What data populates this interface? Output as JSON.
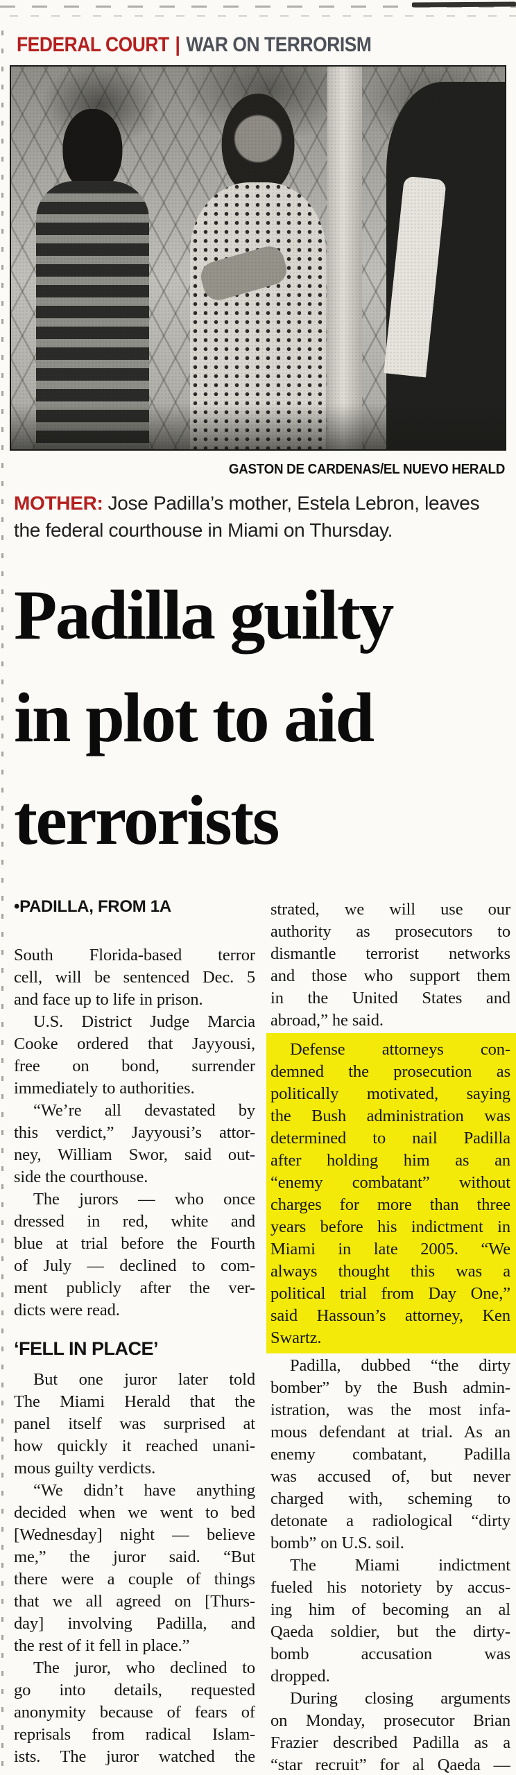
{
  "colors": {
    "kicker_red": "#b5201f",
    "kicker_gray": "#4d5158",
    "highlight_yellow": "#f3ea09",
    "paper": "#fbfaf6",
    "ink": "#161616"
  },
  "kicker": {
    "left": "FEDERAL COURT",
    "divider": "|",
    "right": "WAR ON TERRORISM"
  },
  "photo": {
    "credit": "GASTON DE CARDENAS/EL NUEVO HERALD",
    "description": "black-and-white news photo: woman leaving courthouse past chain-link fence, man in striped shirt behind her, officer at right"
  },
  "caption": {
    "lead": "MOTHER:",
    "text": "Jose Padilla’s mother, Estela Lebron, leaves the federal courthouse in Miami on Thursday."
  },
  "headline": {
    "lines": [
      "Padilla guilty",
      "in plot to aid",
      "terrorists"
    ]
  },
  "columns": {
    "left": [
      {
        "type": "tag",
        "text": "•PADILLA, FROM 1A"
      },
      {
        "type": "para",
        "indent": false,
        "lines": [
          "South Florida-based terror",
          "cell, will be sentenced Dec. 5",
          "and face up to life in prison."
        ]
      },
      {
        "type": "para",
        "indent": true,
        "lines": [
          "U.S. District Judge Marcia",
          "Cooke ordered that Jayyousi,",
          "free on bond, surrender",
          "immediately to authorities."
        ]
      },
      {
        "type": "para",
        "indent": true,
        "lines": [
          "“We’re all devastated by",
          "this verdict,” Jayyousi’s attor-",
          "ney, William Swor, said out-",
          "side the courthouse."
        ]
      },
      {
        "type": "para",
        "indent": true,
        "lines": [
          "The jurors — who once",
          "dressed in red, white and",
          "blue at trial before the Fourth",
          "of July — declined to com-",
          "ment publicly after the ver-",
          "dicts were read."
        ]
      },
      {
        "type": "subhead",
        "text": "‘FELL IN PLACE’"
      },
      {
        "type": "para",
        "indent": true,
        "lines": [
          "But one juror later told",
          "The Miami Herald that the",
          "panel itself was surprised at",
          "how quickly it reached unani-",
          "mous guilty verdicts."
        ]
      },
      {
        "type": "para",
        "indent": true,
        "lines": [
          "“We didn’t have anything",
          "decided when we went to bed",
          "[Wednesday] night — believe",
          "me,” the juror said. “But",
          "there were a couple of things",
          "that we all agreed on [Thurs-",
          "day] involving Padilla, and",
          "the rest of it fell in place.”"
        ]
      },
      {
        "type": "para",
        "indent": true,
        "cut": true,
        "lines": [
          "The juror, who declined to",
          "go into details, requested",
          "anonymity because of fears of",
          "reprisals from radical Islam-",
          "ists. The juror watched the"
        ]
      }
    ],
    "right": [
      {
        "type": "para",
        "indent": false,
        "lines": [
          "strated, we will use our",
          "authority as prosecutors to",
          "dismantle terrorist networks",
          "and those who support them",
          "in the United States and",
          "abroad,” he said."
        ]
      },
      {
        "type": "para",
        "indent": true,
        "highlight": true,
        "lines": [
          "Defense attorneys con-",
          "demned the prosecution as",
          "politically motivated, saying",
          "the Bush administration was",
          "determined to nail Padilla",
          "after holding him as an",
          "“enemy combatant” without",
          "charges for more than three",
          "years before his indictment in",
          "Miami in late 2005. “We",
          "always thought this was a",
          "political trial from Day One,”",
          "said Hassoun’s attorney, Ken",
          "Swartz."
        ]
      },
      {
        "type": "para",
        "indent": true,
        "lines": [
          "Padilla, dubbed “the dirty",
          "bomber” by the Bush admin-",
          "istration, was the most infa-",
          "mous defendant at trial. As an",
          "enemy combatant, Padilla",
          "was accused of, but never",
          "charged with, scheming to",
          "detonate a radiological “dirty",
          "bomb” on U.S. soil."
        ]
      },
      {
        "type": "para",
        "indent": true,
        "lines": [
          "The Miami indictment",
          "fueled his notoriety by accus-",
          "ing him of becoming an al",
          "Qaeda soldier, but the dirty-",
          "bomb accusation was",
          "dropped."
        ]
      },
      {
        "type": "para",
        "indent": true,
        "cut": true,
        "lines": [
          "During closing arguments",
          "on Monday, prosecutor Brian",
          "Frazier described Padilla as a",
          "“star recruit” for al Qaeda —"
        ]
      }
    ]
  }
}
